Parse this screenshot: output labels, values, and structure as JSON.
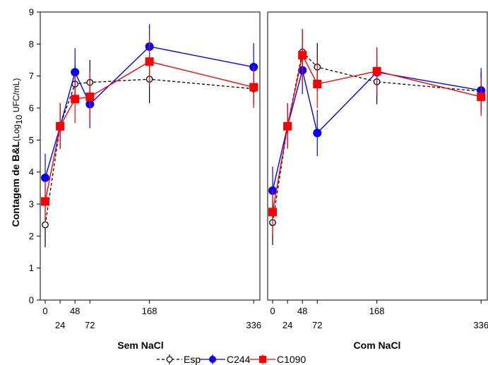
{
  "chart_data": {
    "type": "line",
    "ylabel_main": "Contagem de B&L",
    "ylabel_unit_pre": "(Log",
    "ylabel_unit_sub": "10",
    "ylabel_unit_post": " UFC/mL)",
    "ylim": [
      0,
      9
    ],
    "yticks": [
      "0",
      "1",
      "2",
      "3",
      "4",
      "5",
      "6",
      "7",
      "8",
      "9"
    ],
    "x_ticks": [
      0,
      24,
      48,
      72,
      168,
      336
    ],
    "xlim": [
      -8,
      346
    ],
    "grid": false,
    "legend_position": "bottom",
    "colors": {
      "Esp": "#000000",
      "C244": "#0000ff",
      "C1090": "#ff0000"
    },
    "panels": [
      {
        "xlabel": "Sem NaCl",
        "series": [
          {
            "name": "Esp",
            "x": [
              0,
              24,
              48,
              72,
              168,
              336
            ],
            "y": [
              2.35,
              5.45,
              6.75,
              6.8,
              6.9,
              6.6
            ],
            "err": [
              0.7,
              0.7,
              0.6,
              0.7,
              0.75,
              0.5
            ]
          },
          {
            "name": "C244",
            "x": [
              0,
              24,
              48,
              72,
              168,
              336
            ],
            "y": [
              3.82,
              5.42,
              7.12,
              6.12,
              7.92,
              7.28
            ],
            "err": [
              0.75,
              0.7,
              0.75,
              0.75,
              0.7,
              0.75
            ]
          },
          {
            "name": "C1090",
            "x": [
              0,
              24,
              48,
              72,
              168,
              336
            ],
            "y": [
              3.08,
              5.43,
              6.28,
              6.35,
              7.45,
              6.65
            ],
            "err": [
              0.65,
              0.7,
              0.75,
              0.8,
              0.75,
              0.65
            ]
          }
        ]
      },
      {
        "xlabel": "Com NaCl",
        "series": [
          {
            "name": "Esp",
            "x": [
              0,
              24,
              48,
              72,
              168,
              336
            ],
            "y": [
              2.42,
              5.45,
              7.75,
              7.28,
              6.82,
              6.52
            ],
            "err": [
              0.7,
              0.7,
              0.7,
              0.75,
              0.7,
              0.6
            ]
          },
          {
            "name": "C244",
            "x": [
              0,
              24,
              48,
              72,
              168,
              336
            ],
            "y": [
              3.42,
              5.43,
              7.18,
              5.22,
              7.12,
              6.55
            ],
            "err": [
              0.75,
              0.7,
              0.75,
              0.72,
              0.75,
              0.7
            ]
          },
          {
            "name": "C1090",
            "x": [
              0,
              24,
              48,
              72,
              168,
              336
            ],
            "y": [
              2.75,
              5.43,
              7.65,
              6.75,
              7.15,
              6.35
            ],
            "err": [
              0.7,
              0.7,
              0.82,
              0.75,
              0.75,
              0.6
            ]
          }
        ]
      }
    ]
  }
}
